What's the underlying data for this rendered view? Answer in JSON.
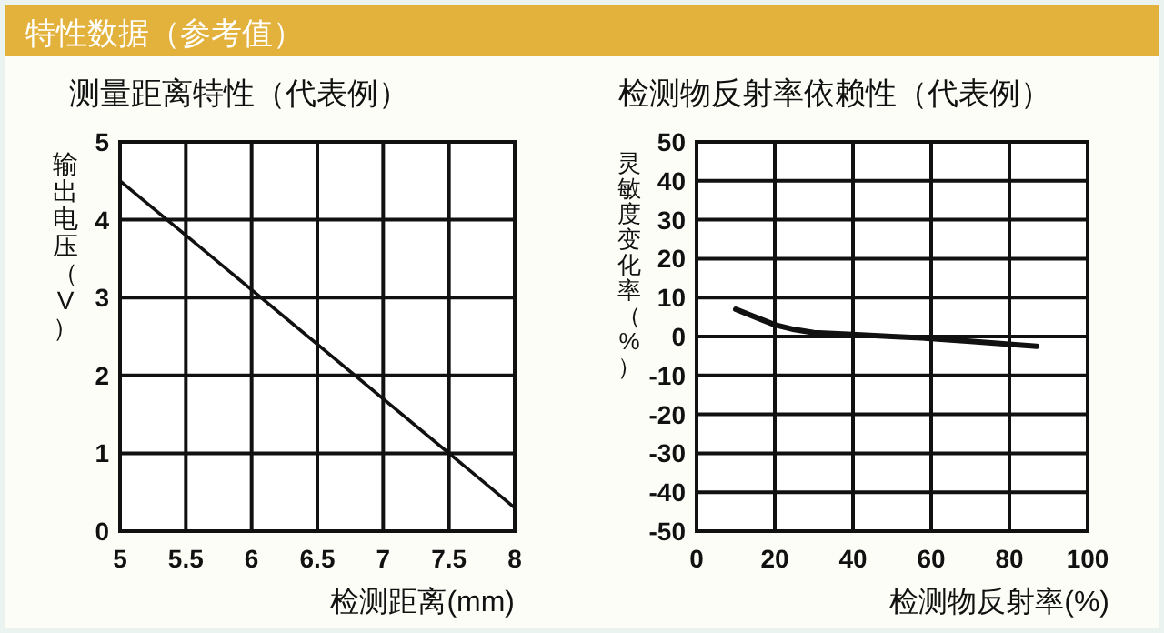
{
  "chart_data": [
    {
      "type": "line",
      "title": "测量距离特性（代表例）",
      "xlabel": "检测距离(mm)",
      "ylabel": "输出电压（V）",
      "annotations": [
        "特性数据（参考值）"
      ],
      "series": [
        {
          "color": "#111111",
          "x": [
            5,
            8
          ],
          "values": [
            4.5,
            0.3
          ]
        }
      ],
      "xlim": [
        5,
        8
      ],
      "xticks": [
        5,
        5.5,
        6,
        6.5,
        7,
        7.5,
        8
      ],
      "ylim": [
        0,
        5
      ],
      "yticks": [
        0,
        1,
        2,
        3,
        4,
        5
      ],
      "grid": true,
      "marker": "none",
      "line_style": "solid"
    },
    {
      "type": "line",
      "title": "检测物反射率依赖性（代表例）",
      "xlabel": "检测物反射率(%)",
      "ylabel": "灵敏度变化率（%）",
      "series": [
        {
          "color": "#111111",
          "x": [
            10,
            15,
            20,
            25,
            30,
            40,
            50,
            60,
            70,
            80,
            87
          ],
          "values": [
            7,
            5,
            3,
            1.8,
            1,
            0.5,
            0,
            -0.5,
            -1.2,
            -2,
            -2.5
          ]
        }
      ],
      "xlim": [
        0,
        100
      ],
      "xticks": [
        0,
        20,
        40,
        60,
        80,
        100
      ],
      "ylim": [
        -50,
        50
      ],
      "yticks": [
        -50,
        -40,
        -30,
        -20,
        -10,
        0,
        10,
        20,
        30,
        40,
        50
      ],
      "grid": true,
      "marker": "none",
      "line_style": "solid"
    }
  ]
}
